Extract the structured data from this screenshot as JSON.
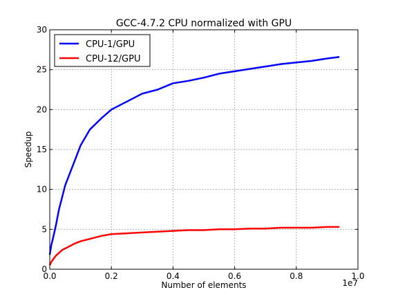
{
  "chart_data": {
    "type": "line",
    "title": "GCC-4.7.2 CPU normalized with GPU",
    "xlabel": "Number of elements",
    "ylabel": "Speedup",
    "x_offset_label": "1e7",
    "xlim": [
      0.0,
      1.0
    ],
    "ylim": [
      0,
      30
    ],
    "xticks": [
      0.0,
      0.2,
      0.4,
      0.6,
      0.8,
      1.0
    ],
    "xtick_labels": [
      "0.0",
      "0.2",
      "0.4",
      "0.6",
      "0.8",
      "1.0"
    ],
    "yticks": [
      0,
      5,
      10,
      15,
      20,
      25,
      30
    ],
    "ytick_labels": [
      "0",
      "5",
      "10",
      "15",
      "20",
      "25",
      "30"
    ],
    "grid": true,
    "legend_position": "top-left",
    "series": [
      {
        "name": "CPU-1/GPU",
        "color": "#0000ff",
        "x": [
          0.0,
          0.005,
          0.01,
          0.02,
          0.03,
          0.05,
          0.08,
          0.1,
          0.13,
          0.17,
          0.2,
          0.25,
          0.3,
          0.35,
          0.4,
          0.45,
          0.5,
          0.55,
          0.6,
          0.65,
          0.7,
          0.75,
          0.8,
          0.85,
          0.9,
          0.94
        ],
        "y": [
          1.8,
          3.0,
          3.8,
          5.5,
          7.5,
          10.5,
          13.5,
          15.5,
          17.5,
          19.0,
          20.0,
          21.0,
          22.0,
          22.5,
          23.3,
          23.6,
          24.0,
          24.5,
          24.8,
          25.1,
          25.4,
          25.7,
          25.9,
          26.1,
          26.4,
          26.6
        ]
      },
      {
        "name": "CPU-12/GPU",
        "color": "#ff0000",
        "x": [
          0.0,
          0.005,
          0.01,
          0.02,
          0.04,
          0.06,
          0.08,
          0.1,
          0.13,
          0.17,
          0.2,
          0.25,
          0.3,
          0.35,
          0.4,
          0.45,
          0.5,
          0.55,
          0.6,
          0.65,
          0.7,
          0.75,
          0.8,
          0.85,
          0.9,
          0.94
        ],
        "y": [
          0.5,
          0.9,
          1.2,
          1.7,
          2.4,
          2.8,
          3.2,
          3.5,
          3.8,
          4.2,
          4.4,
          4.5,
          4.6,
          4.7,
          4.8,
          4.9,
          4.9,
          5.0,
          5.0,
          5.1,
          5.1,
          5.2,
          5.2,
          5.2,
          5.3,
          5.3
        ]
      }
    ]
  }
}
